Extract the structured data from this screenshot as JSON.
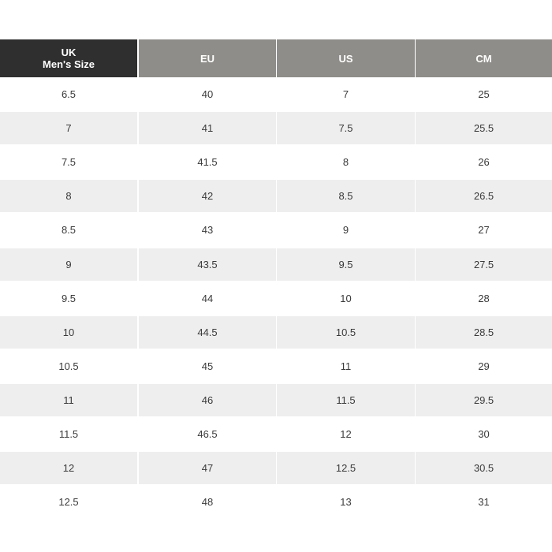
{
  "table": {
    "header": [
      [
        "UK",
        "Men's Size"
      ],
      [
        "EU"
      ],
      [
        "US"
      ],
      [
        "CM"
      ]
    ],
    "rows": [
      [
        "6.5",
        "40",
        "7",
        "25"
      ],
      [
        "7",
        "41",
        "7.5",
        "25.5"
      ],
      [
        "7.5",
        "41.5",
        "8",
        "26"
      ],
      [
        "8",
        "42",
        "8.5",
        "26.5"
      ],
      [
        "8.5",
        "43",
        "9",
        "27"
      ],
      [
        "9",
        "43.5",
        "9.5",
        "27.5"
      ],
      [
        "9.5",
        "44",
        "10",
        "28"
      ],
      [
        "10",
        "44.5",
        "10.5",
        "28.5"
      ],
      [
        "10.5",
        "45",
        "11",
        "29"
      ],
      [
        "11",
        "46",
        "11.5",
        "29.5"
      ],
      [
        "11.5",
        "46.5",
        "12",
        "30"
      ],
      [
        "12",
        "47",
        "12.5",
        "30.5"
      ],
      [
        "12.5",
        "48",
        "13",
        "31"
      ]
    ]
  }
}
